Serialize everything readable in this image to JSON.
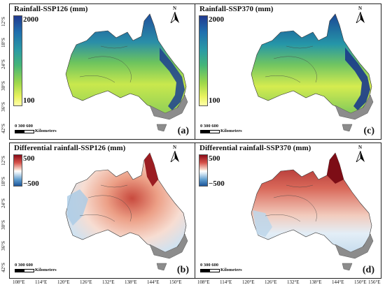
{
  "panels": [
    {
      "id": "a",
      "title": "Rainfall-SSP126 (mm)",
      "label": "(a)",
      "scale_type": "seq",
      "cbar_max": "2000",
      "cbar_min": "100"
    },
    {
      "id": "c",
      "title": "Rainfall-SSP370 (mm)",
      "label": "(c)",
      "scale_type": "seq",
      "cbar_max": "2000",
      "cbar_min": "100"
    },
    {
      "id": "b",
      "title": "Differential rainfall-SSP126 (mm)",
      "label": "(b)",
      "scale_type": "div",
      "cbar_max": "500",
      "cbar_min": "−500"
    },
    {
      "id": "d",
      "title": "Differential rainfall-SSP370 (mm)",
      "label": "(d)",
      "scale_type": "div",
      "cbar_max": "500",
      "cbar_min": "−500"
    }
  ],
  "scale_bar": {
    "ticks": "0   300 600",
    "unit": "Kilometers"
  },
  "north": "N",
  "lat_ticks": [
    "12°S",
    "18°S",
    "24°S",
    "30°S",
    "36°S",
    "42°S"
  ],
  "lon_ticks": [
    "108°E",
    "114°E",
    "120°E",
    "126°E",
    "132°E",
    "138°E",
    "144°E",
    "150°E",
    "156°E"
  ],
  "colors": {
    "seq_high": "#213a8f",
    "seq_low": "#ffffa8",
    "div_high": "#8a0b17",
    "div_low": "#1c5599",
    "outside": "#8c8c8c"
  }
}
